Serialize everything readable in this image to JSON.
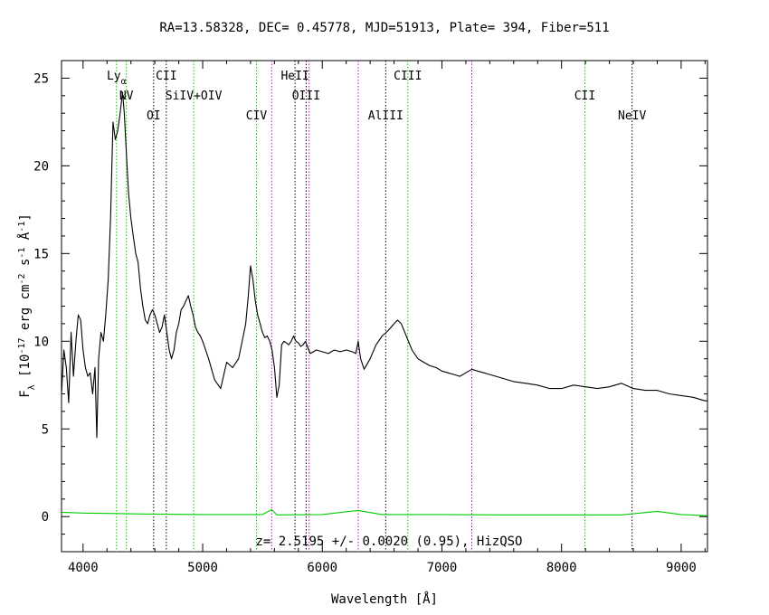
{
  "chart_data": {
    "type": "line",
    "title": "RA=13.58328, DEC= 0.45778, MJD=51913, Plate= 394, Fiber=511",
    "xlabel": "Wavelength [Å]",
    "ylabel": "F_λ [10^-17 erg cm^-2 s^-1 Å^-1]",
    "annotation": "z= 2.5195 +/- 0.0020 (0.95), HizQSO",
    "xlim": [
      3820,
      9220
    ],
    "ylim": [
      -2,
      26
    ],
    "x_ticks": [
      4000,
      5000,
      6000,
      7000,
      8000,
      9000
    ],
    "y_ticks": [
      0,
      5,
      10,
      15,
      20,
      25
    ],
    "grid": false,
    "colors": {
      "spectrum": "#000000",
      "error": "#00cc00",
      "line_green": "#00cc00",
      "line_black": "#000000",
      "line_magenta": "#cc00cc"
    },
    "emission_lines": [
      {
        "label": "Lyα",
        "x": 4280,
        "color": "green"
      },
      {
        "label": "NV",
        "x": 4362,
        "color": "green"
      },
      {
        "label": "OI",
        "x": 4590,
        "color": "black"
      },
      {
        "label": "CII",
        "x": 4696,
        "color": "black"
      },
      {
        "label": "SiIV+OIV",
        "x": 4925,
        "color": "green"
      },
      {
        "label": "CIV",
        "x": 5450,
        "color": "green"
      },
      {
        "label": "HeII",
        "x": 5772,
        "color": "black"
      },
      {
        "label": "OIII",
        "x": 5865,
        "color": "black"
      },
      {
        "label": "AlIII",
        "x": 6530,
        "color": "black"
      },
      {
        "label": "CIII",
        "x": 6715,
        "color": "green"
      },
      {
        "label": "CII",
        "x": 8195,
        "color": "green"
      },
      {
        "label": "NeIV",
        "x": 8590,
        "color": "black"
      }
    ],
    "sky_lines": [
      5577,
      5890,
      6300,
      7250
    ],
    "series": [
      {
        "color": "black",
        "x": [
          3820,
          3840,
          3860,
          3880,
          3900,
          3920,
          3940,
          3960,
          3980,
          4000,
          4020,
          4040,
          4060,
          4080,
          4100,
          4115,
          4130,
          4150,
          4170,
          4190,
          4210,
          4230,
          4250,
          4270,
          4290,
          4310,
          4330,
          4345,
          4360,
          4380,
          4400,
          4420,
          4440,
          4460,
          4480,
          4500,
          4520,
          4540,
          4560,
          4580,
          4600,
          4620,
          4640,
          4660,
          4680,
          4700,
          4720,
          4740,
          4760,
          4780,
          4800,
          4820,
          4840,
          4860,
          4880,
          4900,
          4920,
          4940,
          4960,
          4980,
          5000,
          5050,
          5100,
          5150,
          5200,
          5250,
          5300,
          5330,
          5360,
          5380,
          5400,
          5420,
          5440,
          5460,
          5480,
          5500,
          5520,
          5540,
          5560,
          5580,
          5600,
          5620,
          5640,
          5660,
          5680,
          5700,
          5720,
          5740,
          5760,
          5780,
          5800,
          5820,
          5840,
          5860,
          5880,
          5900,
          5950,
          6000,
          6050,
          6100,
          6150,
          6200,
          6250,
          6280,
          6300,
          6320,
          6350,
          6400,
          6450,
          6500,
          6550,
          6600,
          6630,
          6660,
          6690,
          6720,
          6750,
          6800,
          6850,
          6900,
          6950,
          7000,
          7050,
          7100,
          7150,
          7200,
          7250,
          7300,
          7350,
          7400,
          7500,
          7600,
          7700,
          7800,
          7900,
          8000,
          8100,
          8200,
          8300,
          8400,
          8500,
          8600,
          8700,
          8800,
          8900,
          9000,
          9100,
          9200,
          9220
        ],
        "y": [
          7.0,
          9.5,
          8.5,
          6.5,
          10.5,
          8.0,
          10.0,
          11.5,
          11.2,
          9.5,
          8.5,
          8.0,
          8.2,
          7.0,
          8.5,
          4.5,
          9.0,
          10.5,
          10.0,
          11.5,
          13.5,
          17.0,
          22.5,
          21.5,
          22.0,
          23.0,
          24.2,
          23.0,
          21.0,
          18.5,
          17.0,
          16.0,
          15.0,
          14.5,
          13.0,
          12.0,
          11.2,
          11.0,
          11.5,
          11.8,
          11.5,
          11.0,
          10.5,
          10.8,
          11.5,
          10.5,
          9.5,
          9.0,
          9.5,
          10.5,
          11.0,
          11.8,
          12.0,
          12.3,
          12.6,
          12.0,
          11.5,
          10.8,
          10.5,
          10.3,
          10.0,
          9.0,
          7.8,
          7.3,
          8.8,
          8.5,
          9.0,
          10.0,
          11.0,
          12.5,
          14.3,
          13.5,
          12.3,
          11.5,
          11.0,
          10.5,
          10.2,
          10.3,
          10.0,
          9.5,
          8.5,
          6.8,
          7.5,
          9.8,
          10.0,
          9.9,
          9.8,
          10.0,
          10.3,
          10.0,
          9.9,
          9.7,
          9.8,
          10.0,
          9.6,
          9.3,
          9.5,
          9.4,
          9.3,
          9.5,
          9.4,
          9.5,
          9.4,
          9.3,
          10.0,
          9.0,
          8.4,
          9.0,
          9.8,
          10.3,
          10.6,
          11.0,
          11.2,
          11.0,
          10.5,
          10.0,
          9.5,
          9.0,
          8.8,
          8.6,
          8.5,
          8.3,
          8.2,
          8.1,
          8.0,
          8.2,
          8.4,
          8.3,
          8.2,
          8.1,
          7.9,
          7.7,
          7.6,
          7.5,
          7.3,
          7.3,
          7.5,
          7.4,
          7.3,
          7.4,
          7.6,
          7.3,
          7.2,
          7.2,
          7.0,
          6.9,
          6.8,
          6.6,
          6.6
        ]
      },
      {
        "color": "green",
        "x": [
          3820,
          4000,
          4500,
          5000,
          5500,
          5577,
          5620,
          6000,
          6300,
          6500,
          7000,
          7500,
          8000,
          8500,
          8800,
          9000,
          9220
        ],
        "y": [
          0.25,
          0.2,
          0.15,
          0.12,
          0.12,
          0.4,
          0.1,
          0.12,
          0.35,
          0.12,
          0.12,
          0.1,
          0.1,
          0.1,
          0.3,
          0.12,
          0.05
        ]
      }
    ]
  }
}
